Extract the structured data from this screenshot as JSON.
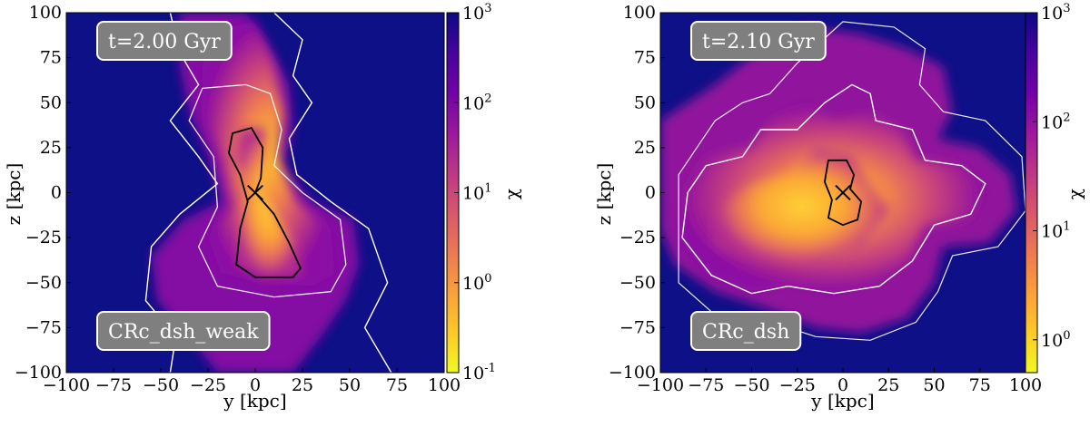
{
  "chart_data": [
    {
      "type": "heatmap",
      "title": "",
      "xlabel": "y [kpc]",
      "ylabel": "z [kpc]",
      "xlim": [
        -100,
        100
      ],
      "ylim": [
        -100,
        100
      ],
      "xticks": [
        "−100",
        "−75",
        "−50",
        "−25",
        "0",
        "25",
        "50",
        "75",
        "100"
      ],
      "yticks": [
        "100",
        "75",
        "50",
        "25",
        "0",
        "−25",
        "−50",
        "−75",
        "−100"
      ],
      "time_label": "t=2.00 Gyr",
      "run_label": "CRc_dsh_weak",
      "colorbar": {
        "label": "χ",
        "scale": "log",
        "range": [
          0.1,
          1000
        ],
        "ticks": [
          {
            "base": "10",
            "exp": "3",
            "value": 1000
          },
          {
            "base": "10",
            "exp": "2",
            "value": 100
          },
          {
            "base": "10",
            "exp": "1",
            "value": 10
          },
          {
            "base": "10",
            "exp": "0",
            "value": 1
          },
          {
            "base": "10",
            "exp": "-1",
            "value": 0.1
          }
        ],
        "colormap": "plasma_r"
      },
      "grid": false,
      "morphology": "bipolar"
    },
    {
      "type": "heatmap",
      "title": "",
      "xlabel": "y [kpc]",
      "ylabel": "z [kpc]",
      "xlim": [
        -100,
        100
      ],
      "ylim": [
        -100,
        100
      ],
      "xticks": [
        "−100",
        "−75",
        "−50",
        "−25",
        "0",
        "25",
        "50",
        "75",
        "100"
      ],
      "yticks": [
        "100",
        "75",
        "50",
        "25",
        "0",
        "−25",
        "−50",
        "−75",
        "−100"
      ],
      "time_label": "t=2.10 Gyr",
      "run_label": "CRc_dsh",
      "colorbar": {
        "label": "χ",
        "scale": "log",
        "range": [
          0.5,
          1000
        ],
        "ticks": [
          {
            "base": "10",
            "exp": "3",
            "value": 1000
          },
          {
            "base": "10",
            "exp": "2",
            "value": 100
          },
          {
            "base": "10",
            "exp": "1",
            "value": 10
          },
          {
            "base": "10",
            "exp": "0",
            "value": 1
          }
        ],
        "colormap": "plasma_r"
      },
      "grid": false,
      "morphology": "irregular"
    }
  ],
  "colors": {
    "background": "#0d1087",
    "contour_outer": "#ffffff",
    "contour_inner": "#000000",
    "badge_fill": "#7f7f7f",
    "badge_border": "#ffffff"
  }
}
